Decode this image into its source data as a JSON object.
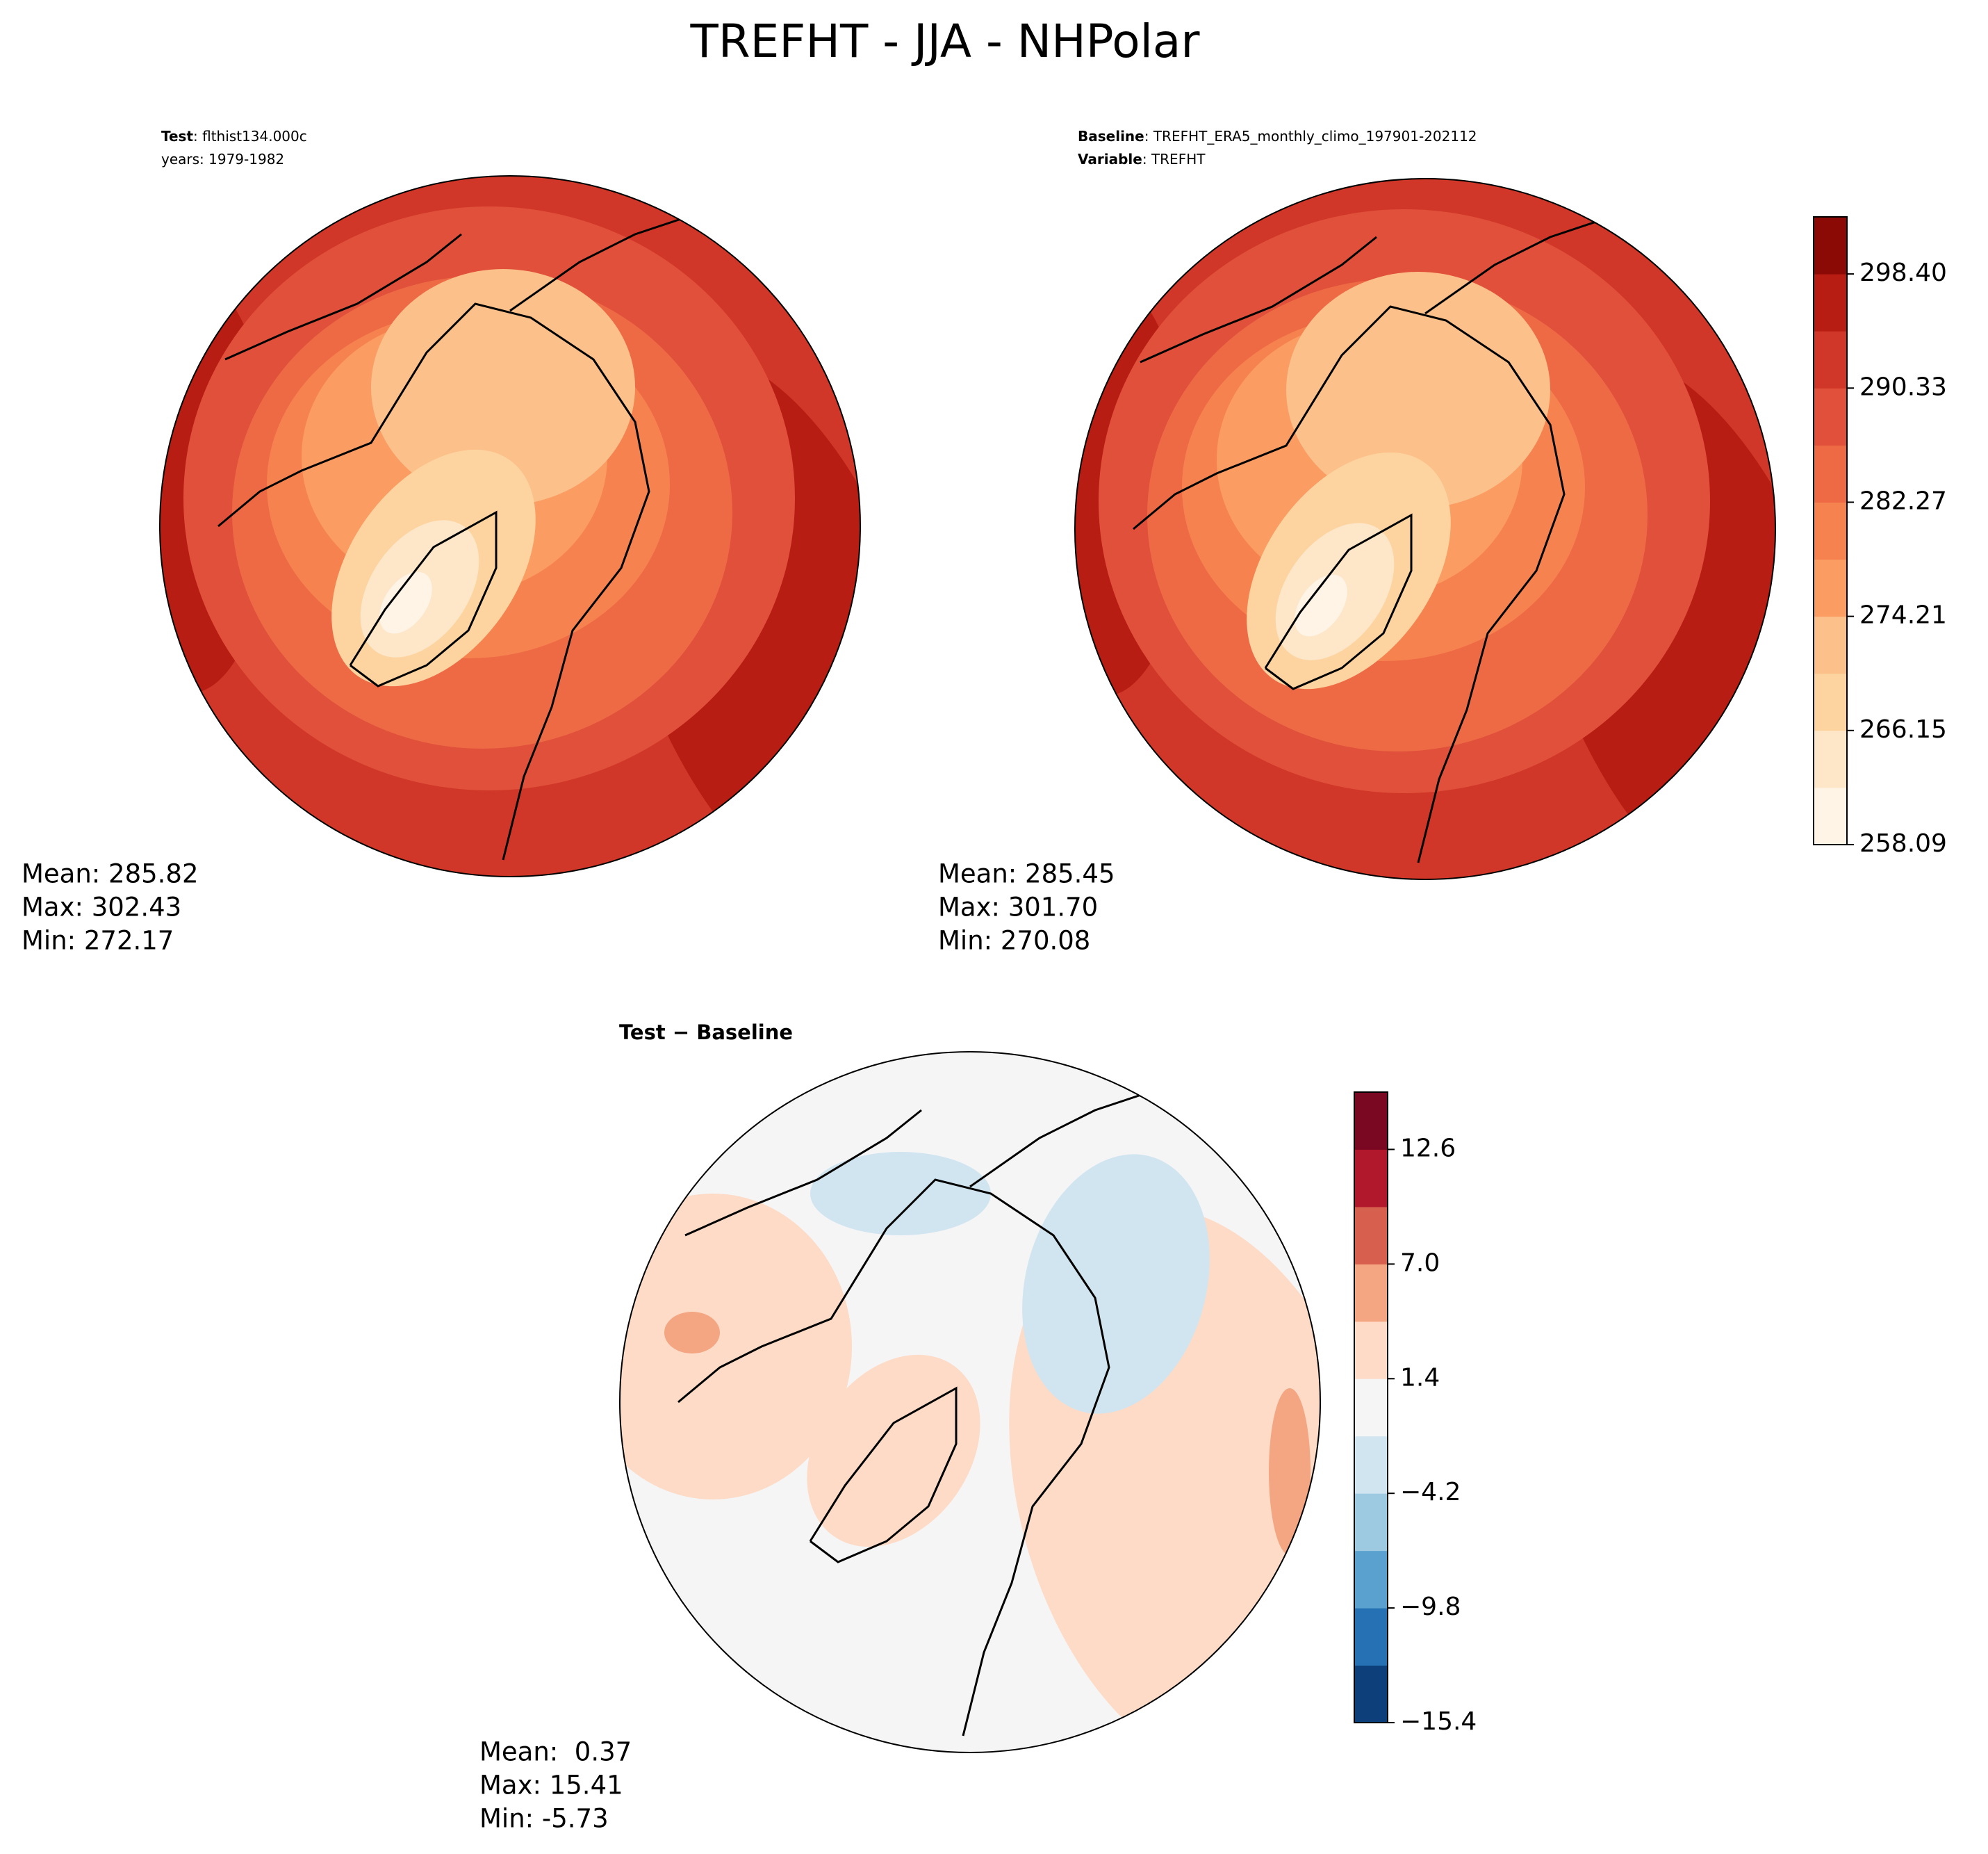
{
  "title": "TREFHT - JJA - NHPolar",
  "panels": [
    {
      "label_lines": [
        {
          "bold": "Test",
          "text": ": flthist134.000c"
        },
        {
          "text": "years: 1979-1982"
        }
      ],
      "stats": [
        "Mean: 285.82",
        "Max: 302.43",
        "Min: 272.17"
      ]
    },
    {
      "label_lines": [
        {
          "bold": "Baseline",
          "text": ": TREFHT_ERA5_monthly_climo_197901-202112"
        },
        {
          "bold": "Variable",
          "text": ": TREFHT"
        }
      ],
      "stats": [
        "Mean: 285.45",
        "Max: 301.70",
        "Min: 270.08"
      ]
    },
    {
      "label_lines": [
        {
          "bold": "Test − Baseline"
        }
      ],
      "stats": [
        "Mean:  0.37",
        "Max: 15.41",
        "Min: -5.73"
      ]
    }
  ],
  "colorbars": [
    {
      "colors": [
        "#fff4e6",
        "#fee6c8",
        "#fdd4a0",
        "#fcc08a",
        "#fb9c63",
        "#f6834f",
        "#ee6a45",
        "#e0503a",
        "#d03728",
        "#b81d13",
        "#8c0a05"
      ],
      "ticks": [
        "258.09",
        "266.15",
        "274.21",
        "282.27",
        "290.33",
        "298.40"
      ]
    },
    {
      "colors": [
        "#0d3f7a",
        "#2571b4",
        "#5aa1cf",
        "#9ecae1",
        "#d1e5f0",
        "#f5f5f5",
        "#fddbc7",
        "#f4a582",
        "#d6604d",
        "#b2182b",
        "#7a0822"
      ],
      "ticks": [
        "−15.4",
        "−9.8",
        "−4.2",
        "1.4",
        "7.0",
        "12.6"
      ]
    }
  ]
}
